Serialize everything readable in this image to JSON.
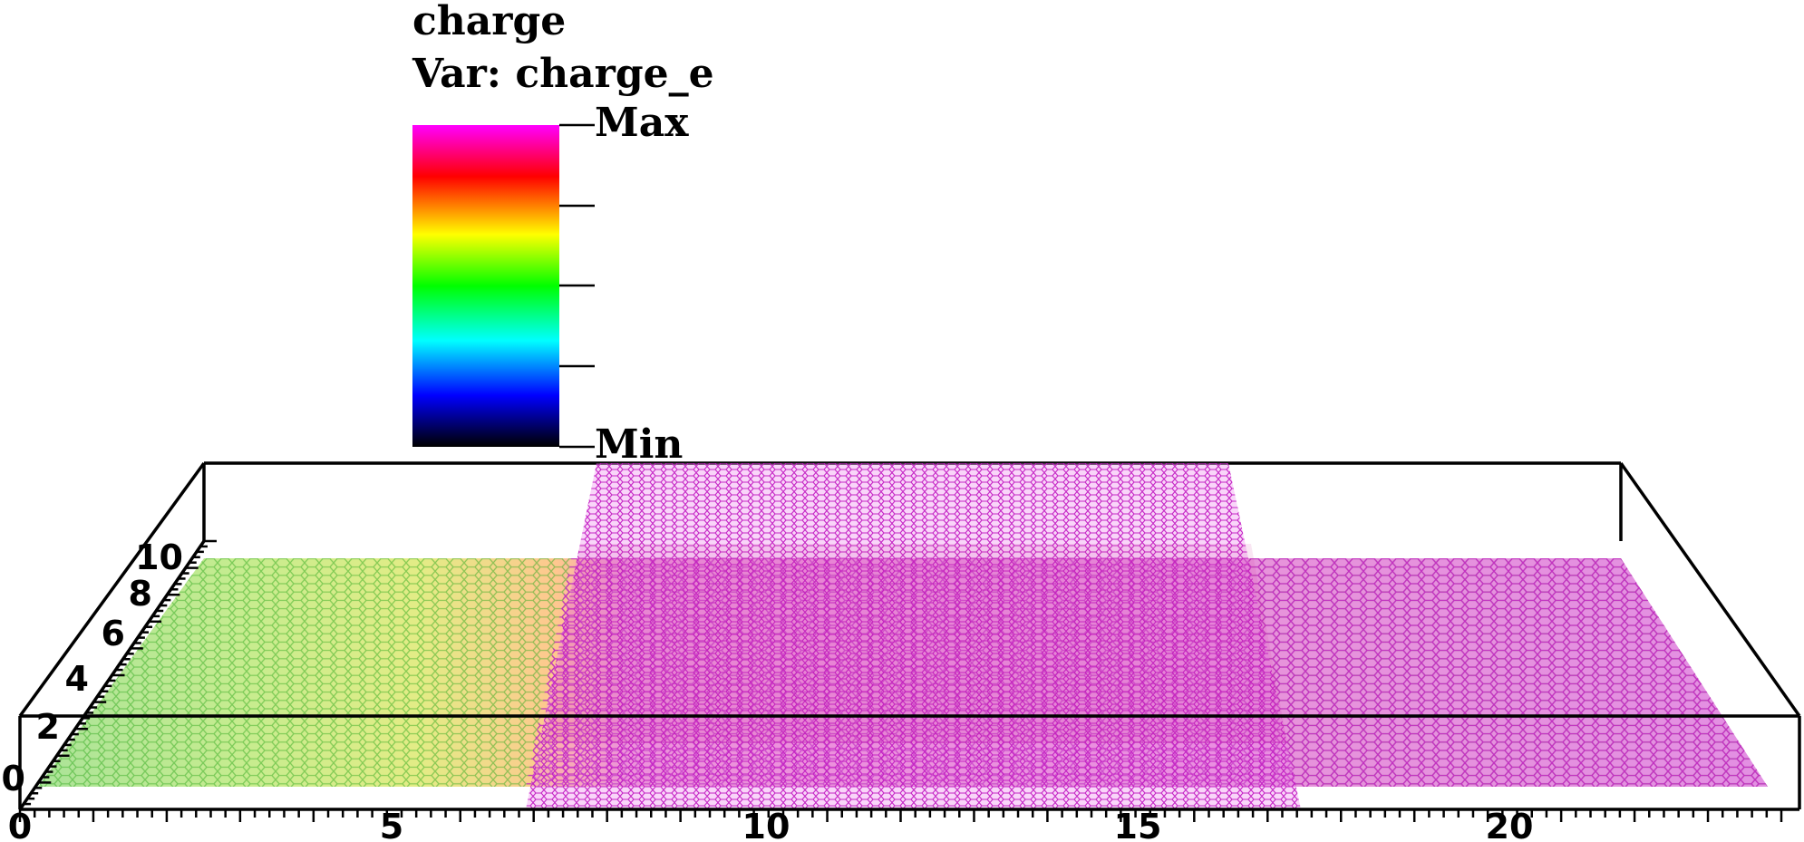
{
  "plot": {
    "title": "charge",
    "variable_label": "Var: charge_e"
  },
  "legend": {
    "max_label": "Max",
    "min_label": "Min",
    "colormap": [
      "#ff00ff",
      "#ff0000",
      "#ffff00",
      "#00ff00",
      "#00ffff",
      "#0000ff",
      "#000000"
    ]
  },
  "axes": {
    "x_ticks": [
      "0",
      "5",
      "10",
      "15",
      "20"
    ],
    "y_ticks": [
      "0",
      "2",
      "4",
      "6",
      "8",
      "10"
    ]
  },
  "colors": {
    "upper_sheet": "#cc33cc",
    "lower_sheet_right": "#cc22cc",
    "box": "#000000"
  }
}
